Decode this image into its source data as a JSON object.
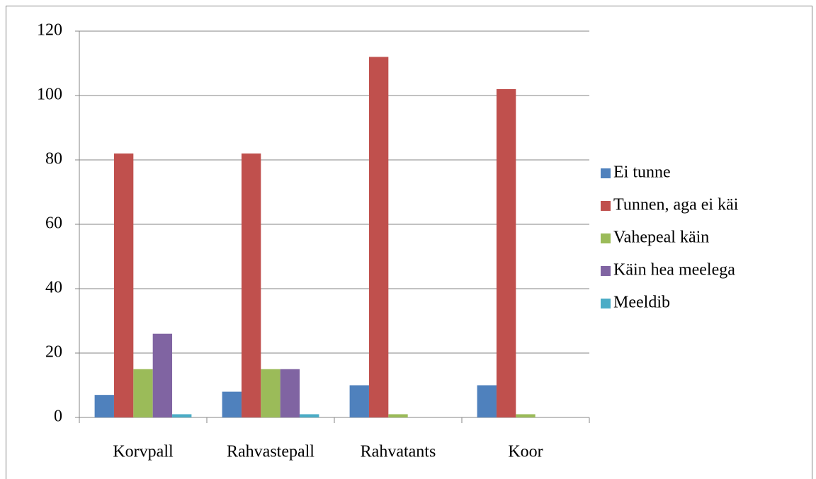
{
  "chart_data": {
    "type": "bar",
    "categories": [
      "Korvpall",
      "Rahvastepall",
      "Rahvatants",
      "Koor"
    ],
    "series": [
      {
        "name": "Ei tunne",
        "color": "#4f81bd",
        "values": [
          7,
          8,
          10,
          10
        ]
      },
      {
        "name": "Tunnen, aga ei käi",
        "color": "#c0504d",
        "values": [
          82,
          82,
          112,
          102
        ]
      },
      {
        "name": "Vahepeal käin",
        "color": "#9bbb59",
        "values": [
          15,
          15,
          1,
          1
        ]
      },
      {
        "name": "Käin hea meelega",
        "color": "#8064a2",
        "values": [
          26,
          15,
          0,
          0
        ]
      },
      {
        "name": "Meeldib",
        "color": "#4bacc6",
        "values": [
          1,
          1,
          0,
          0
        ]
      }
    ],
    "ylim": [
      0,
      120
    ],
    "yticks": [
      0,
      20,
      40,
      60,
      80,
      100,
      120
    ],
    "grid": true,
    "legend": "right"
  }
}
